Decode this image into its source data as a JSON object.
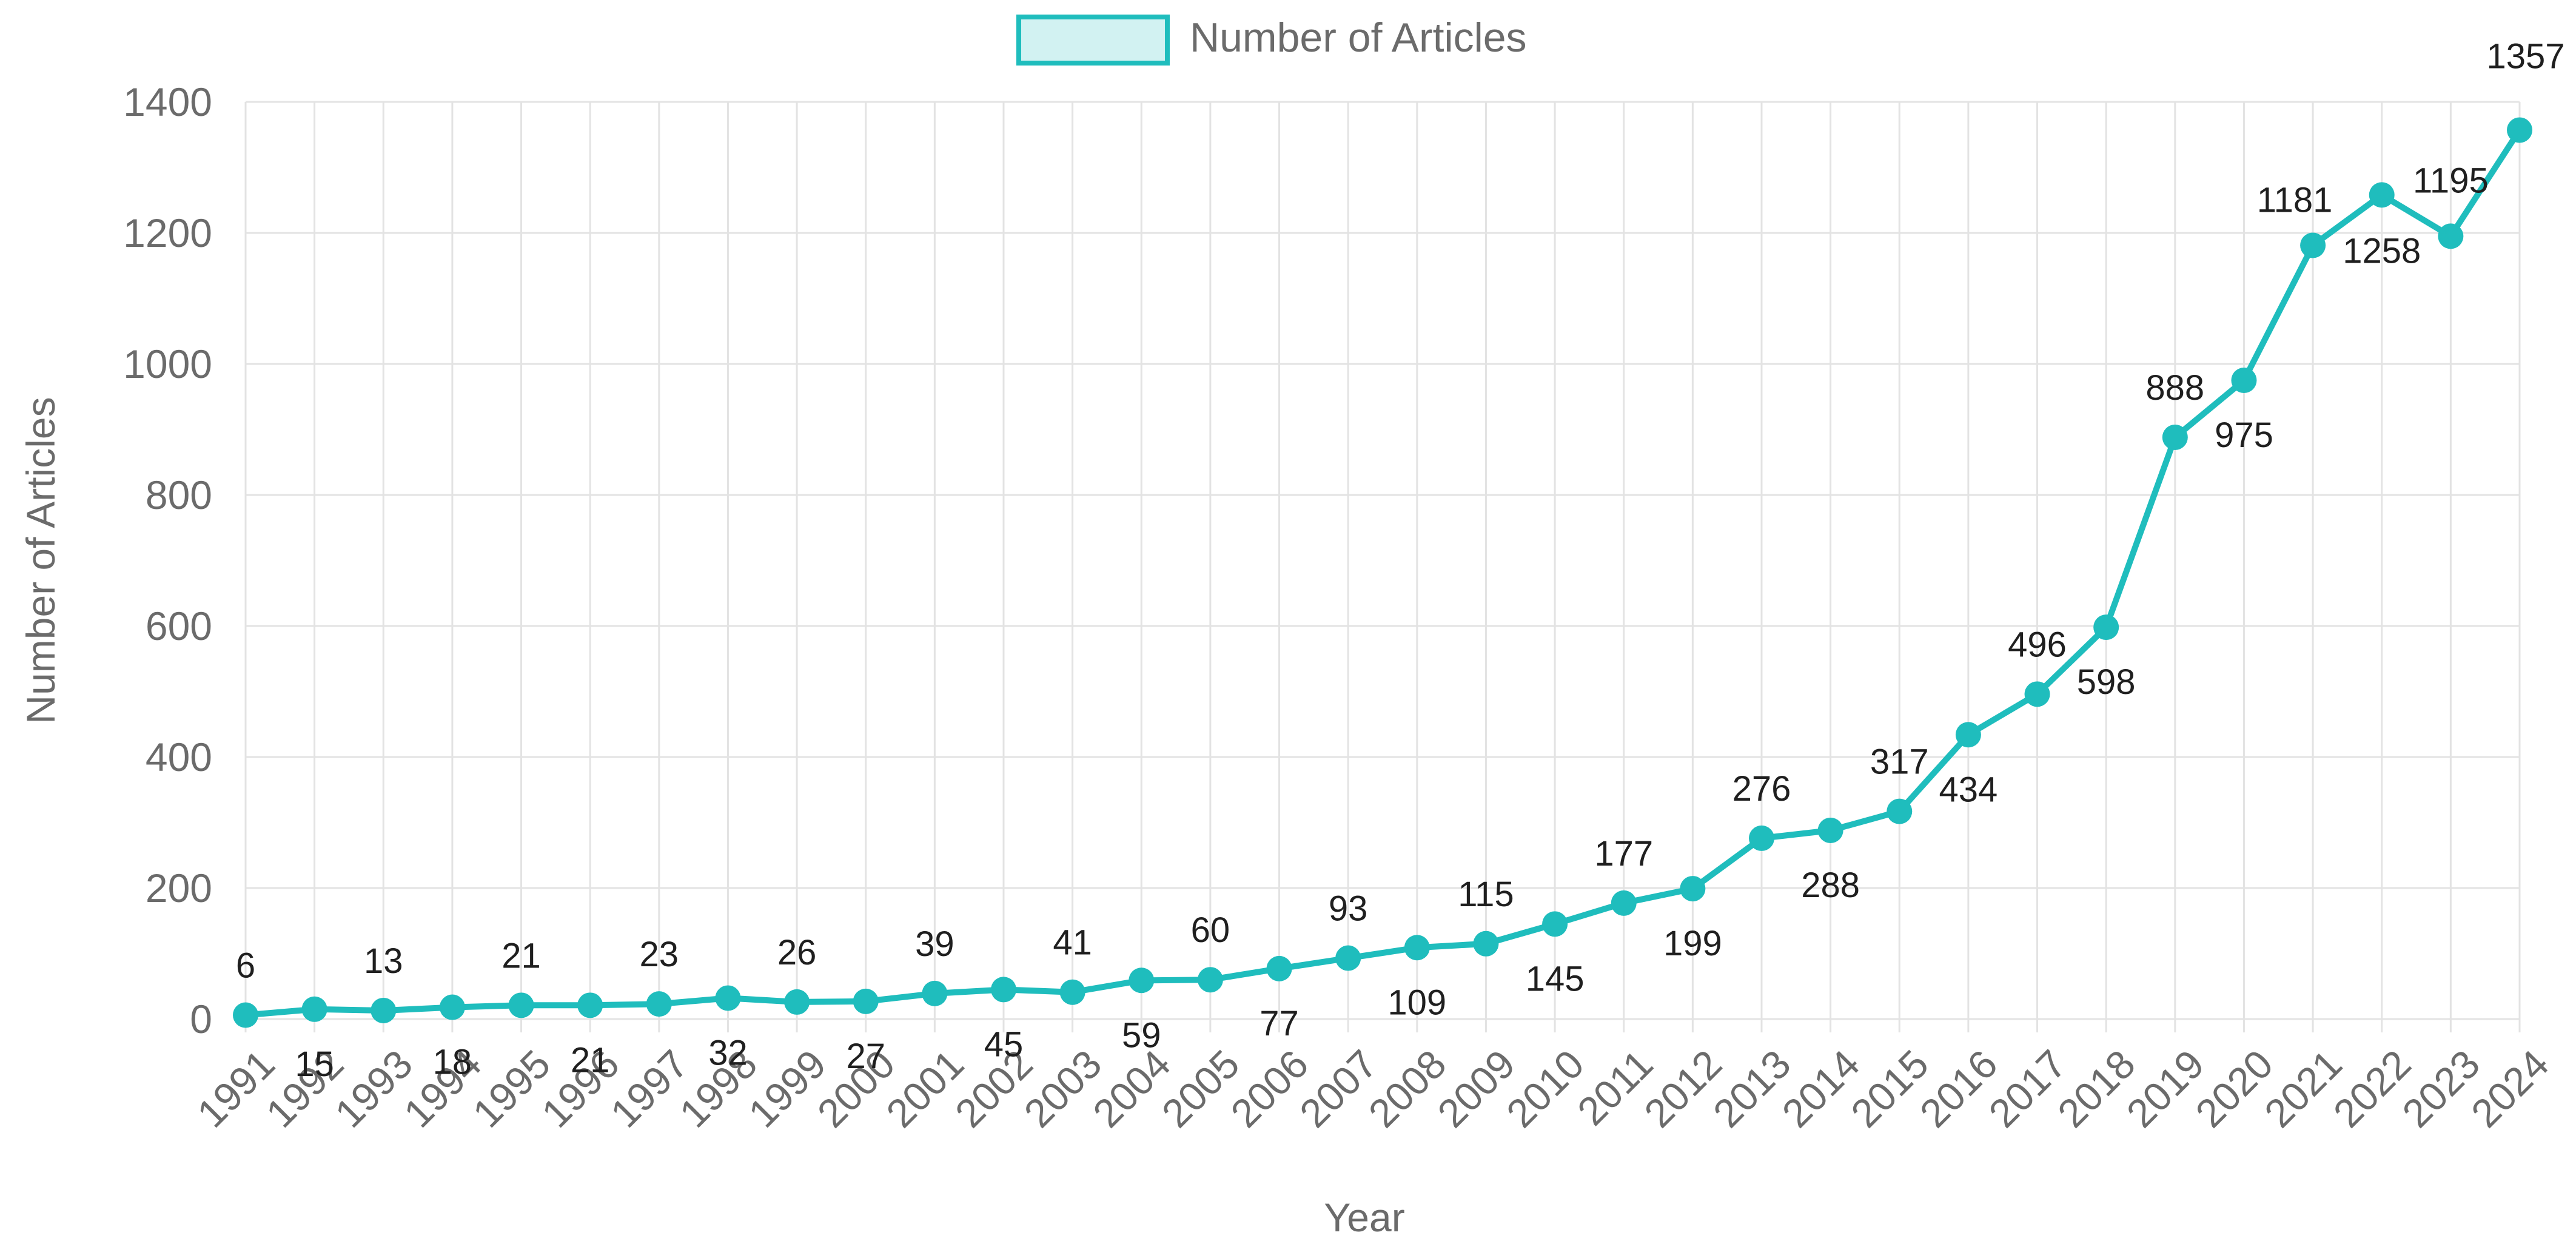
{
  "chart_data": {
    "type": "line",
    "title": "",
    "xlabel": "Year",
    "ylabel": "Number of Articles",
    "ylim": [
      0,
      1400
    ],
    "yticks": [
      0,
      200,
      400,
      600,
      800,
      1000,
      1200,
      1400
    ],
    "grid": true,
    "legend_position": "top-center",
    "colors": {
      "line": "#1fbdbd",
      "legend_fill": "#d2f2f2",
      "grid": "#e3e3e3",
      "axis_text": "#6b6b6b",
      "label_text": "#1f1f1f"
    },
    "categories": [
      "1991",
      "1992",
      "1993",
      "1994",
      "1995",
      "1996",
      "1997",
      "1998",
      "1999",
      "2000",
      "2001",
      "2002",
      "2003",
      "2004",
      "2005",
      "2006",
      "2007",
      "2008",
      "2009",
      "2010",
      "2011",
      "2012",
      "2013",
      "2014",
      "2015",
      "2016",
      "2017",
      "2018",
      "2019",
      "2020",
      "2021",
      "2022",
      "2023",
      "2024"
    ],
    "series": [
      {
        "name": "Number of Articles",
        "values": [
          6,
          15,
          13,
          18,
          21,
          21,
          23,
          32,
          26,
          27,
          39,
          45,
          41,
          59,
          60,
          77,
          93,
          109,
          115,
          145,
          177,
          199,
          276,
          288,
          317,
          434,
          496,
          598,
          888,
          975,
          1181,
          1258,
          1195,
          1357
        ],
        "labels": [
          "6",
          "15",
          "13",
          "18",
          "21",
          "21",
          "23",
          "32",
          "26",
          "27",
          "39",
          "45",
          "41",
          "59",
          "60",
          "77",
          "93",
          "109",
          "115",
          "145",
          "177",
          "199",
          "276",
          "288",
          "317",
          "434",
          "496",
          "598",
          "888",
          "975",
          "1181",
          "1258",
          "1195",
          "1357"
        ]
      }
    ]
  }
}
